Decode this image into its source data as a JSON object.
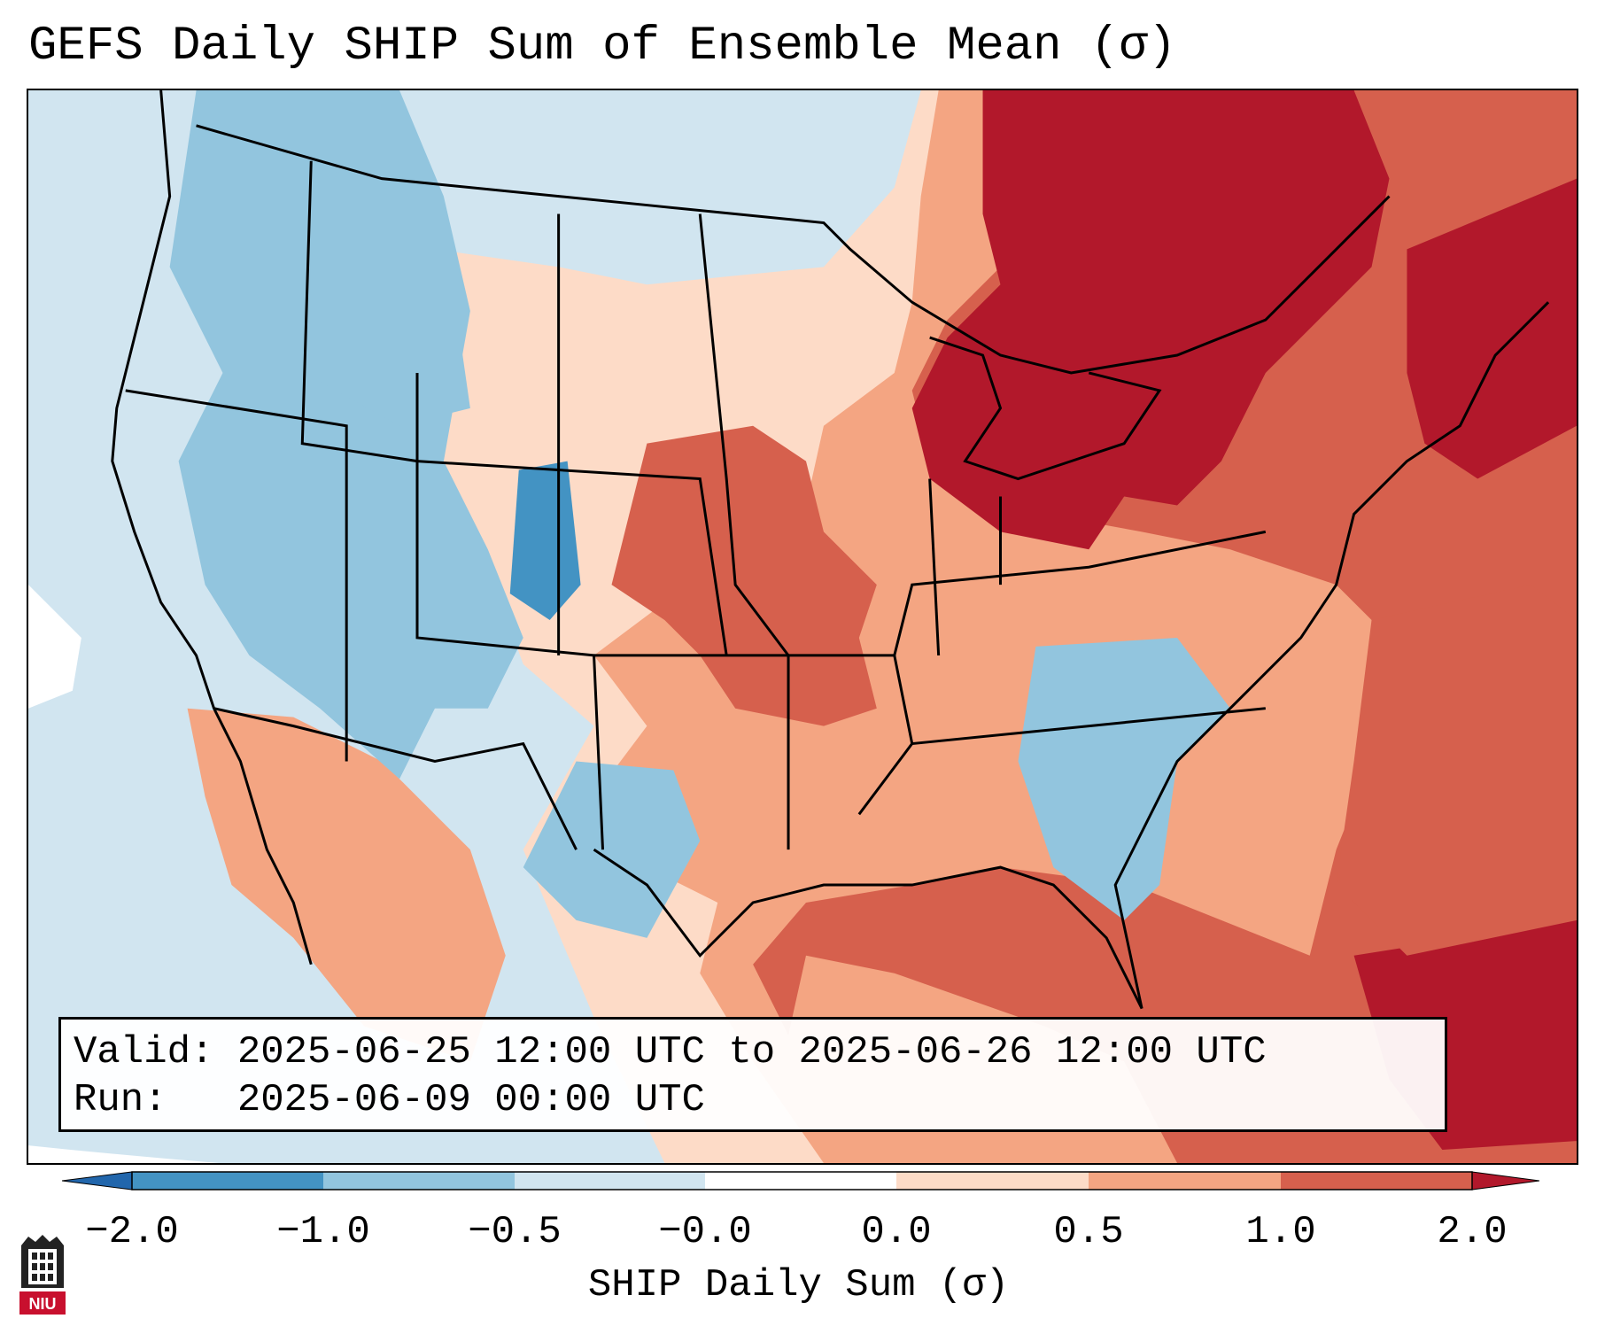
{
  "title": "GEFS Daily SHIP Sum of Ensemble Mean (σ)",
  "info": {
    "valid_label": "Valid:",
    "valid_value": "2025-06-25 12:00 UTC to 2025-06-26 12:00 UTC",
    "run_label": "Run:",
    "run_value": "2025-06-09 00:00 UTC"
  },
  "colorbar": {
    "label": "SHIP Daily Sum (σ)",
    "tick_labels": [
      "−2.0",
      "−1.0",
      "−0.5",
      "−0.0",
      "0.0",
      "0.5",
      "1.0",
      "2.0"
    ],
    "colors": [
      "#2166ac",
      "#4393c3",
      "#92c5de",
      "#d1e5f0",
      "#ffffff",
      "#fddbc7",
      "#f4a582",
      "#d6604d",
      "#b2182b"
    ]
  },
  "logo": {
    "icon": "niu-logo-icon",
    "text": "NIU",
    "color": "#c8102e"
  },
  "map": {
    "region": "Contiguous United States",
    "field_colors": {
      "strong_negative": "#4393c3",
      "moderate_negative": "#92c5de",
      "weak_negative": "#d1e5f0",
      "weak_positive": "#fddbc7",
      "moderate_positive": "#f4a582",
      "strong_positive": "#d6604d",
      "very_strong_positive": "#b2182b"
    }
  }
}
